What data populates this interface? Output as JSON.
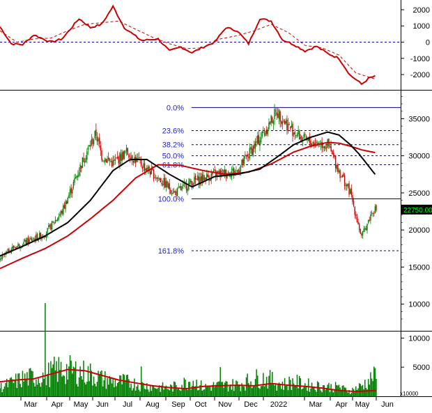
{
  "colors": {
    "background": "#ffffff",
    "frame": "#000000",
    "price_up": "#008000",
    "price_down": "#cc0000",
    "ma_short": "#000000",
    "ma_long": "#cc0000",
    "volume": "#008000",
    "volume_ma": "#cc0000",
    "fib_line": "#000080",
    "fib_text": "#1a1ae6",
    "last_price_bg": "#000000",
    "last_price_fg": "#00ff00"
  },
  "x_axis": {
    "labels": [
      "Mar",
      "Apr",
      "May",
      "Jun",
      "Jul",
      "Aug",
      "Sep",
      "Oct",
      "Nov",
      "Dec",
      "2022",
      "Mar",
      "Apr",
      "May",
      "Jun"
    ]
  },
  "oscillator_panel": {
    "ticks": [
      "2000",
      "1000",
      "0",
      "-1000",
      "-2000"
    ]
  },
  "price_panel": {
    "ticks": [
      "35000",
      "30000",
      "25000",
      "20000",
      "15000",
      "10000"
    ],
    "last_price_label": "22750.00",
    "fib_labels": [
      "0.0%",
      "23.6%",
      "38.2%",
      "50.0%",
      "61.8%",
      "100.0%",
      "161.8%"
    ]
  },
  "volume_panel": {
    "ticks": [
      "10000",
      "5000"
    ],
    "unit_label": "x10000"
  },
  "chart_data": [
    {
      "type": "line",
      "panel": "oscillator",
      "ylim": [
        -2900,
        2600
      ],
      "x_index_range": [
        0,
        333
      ],
      "series": [
        {
          "x": [
            0,
            10,
            20,
            30,
            45,
            55,
            70,
            80,
            90,
            100,
            110,
            125,
            140,
            150,
            160,
            170,
            180,
            190,
            200,
            210,
            220,
            230,
            240,
            250,
            260,
            270,
            280,
            290,
            300,
            310,
            315,
            320,
            327,
            333
          ],
          "values": [
            950,
            -100,
            -150,
            450,
            0,
            200,
            1450,
            900,
            1100,
            2200,
            900,
            100,
            200,
            -550,
            -300,
            -650,
            -300,
            0,
            900,
            700,
            -100,
            1450,
            1300,
            150,
            -150,
            -550,
            -250,
            -700,
            -1000,
            -2050,
            -2300,
            -2600,
            -2200,
            -2100
          ]
        },
        {
          "x": [
            0,
            15,
            30,
            45,
            60,
            75,
            90,
            105,
            120,
            135,
            150,
            165,
            180,
            195,
            210,
            225,
            240,
            255,
            270,
            285,
            300,
            315,
            333
          ],
          "values": [
            700,
            0,
            200,
            250,
            700,
            1100,
            1200,
            1300,
            800,
            300,
            -100,
            -400,
            -350,
            200,
            400,
            700,
            1100,
            600,
            -200,
            -350,
            -800,
            -1900,
            -2300
          ]
        }
      ]
    },
    {
      "type": "candlestick",
      "panel": "price",
      "ylim": [
        6500,
        38700
      ],
      "x_index_range": [
        0,
        333
      ],
      "key_points": {
        "x": [
          0,
          10,
          40,
          55,
          75,
          85,
          90,
          100,
          112,
          140,
          155,
          170,
          190,
          210,
          235,
          245,
          255,
          270,
          290,
          300,
          310,
          320,
          330
        ],
        "values": [
          16000,
          17500,
          19500,
          22500,
          30000,
          33000,
          30000,
          29000,
          30500,
          27000,
          25000,
          26500,
          27500,
          28000,
          33500,
          36000,
          34000,
          32000,
          31500,
          28000,
          25000,
          19000,
          22750
        ]
      },
      "last_price": 22750,
      "ma_short": {
        "x": [
          0,
          20,
          40,
          60,
          80,
          100,
          115,
          130,
          150,
          170,
          190,
          210,
          230,
          245,
          260,
          275,
          290,
          300,
          310,
          318,
          333
        ],
        "values": [
          16500,
          17800,
          19200,
          21000,
          24000,
          28000,
          29500,
          29500,
          27500,
          25800,
          27200,
          27500,
          28200,
          29800,
          31500,
          32500,
          33200,
          32800,
          31500,
          30200,
          27300
        ]
      },
      "ma_long": {
        "x": [
          0,
          20,
          40,
          60,
          80,
          100,
          120,
          140,
          160,
          180,
          200,
          220,
          240,
          260,
          275,
          290,
          300,
          310,
          320,
          333
        ],
        "values": [
          14800,
          16200,
          17500,
          19200,
          21500,
          24000,
          27000,
          28800,
          28700,
          28000,
          27500,
          27800,
          28900,
          30500,
          31300,
          31800,
          31700,
          31300,
          30800,
          30400
        ]
      },
      "fibonacci": {
        "levels": [
          "0.0%",
          "23.6%",
          "38.2%",
          "50.0%",
          "61.8%",
          "100.0%",
          "161.8%"
        ],
        "prices": [
          36500,
          33400,
          31500,
          30000,
          28800,
          24200,
          17200
        ]
      }
    },
    {
      "type": "bar",
      "panel": "volume",
      "ylim": [
        0,
        11000
      ],
      "x_index_range": [
        0,
        333
      ],
      "volume_key_points": {
        "x": [
          0,
          20,
          40,
          50,
          60,
          80,
          90,
          100,
          110,
          130,
          150,
          160,
          170,
          180,
          190,
          210,
          230,
          240,
          250,
          260,
          270,
          280,
          300,
          310,
          320,
          333
        ],
        "values": [
          1500,
          3000,
          3500,
          4500,
          4500,
          3800,
          3000,
          2500,
          2500,
          1800,
          1400,
          2000,
          2800,
          1500,
          1800,
          2000,
          3200,
          2800,
          2000,
          2500,
          2000,
          1800,
          1500,
          900,
          1800,
          3500
        ]
      },
      "ma": {
        "x": [
          0,
          15,
          30,
          45,
          60,
          75,
          90,
          105,
          120,
          135,
          150,
          165,
          180,
          195,
          210,
          225,
          240,
          255,
          270,
          285,
          300,
          315,
          333
        ],
        "values": [
          2500,
          2800,
          3000,
          3800,
          4600,
          4400,
          3600,
          2800,
          2300,
          1800,
          1500,
          1300,
          1700,
          1800,
          1900,
          1800,
          2200,
          1900,
          1700,
          1400,
          1000,
          800,
          1000
        ]
      }
    }
  ]
}
